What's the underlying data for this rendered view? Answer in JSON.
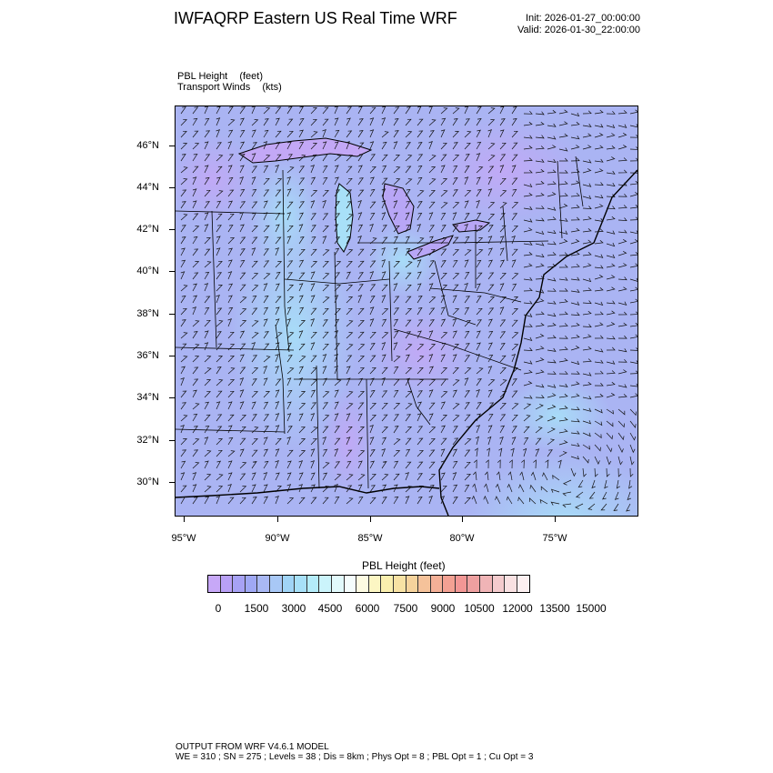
{
  "header": {
    "title": "IWFAQRP Eastern US Real Time WRF",
    "init": "Init: 2026-01-27_00:00:00",
    "valid": "Valid: 2026-01-30_22:00:00"
  },
  "fields": [
    {
      "name": "PBL Height",
      "unit": "(feet)"
    },
    {
      "name": "Transport Winds",
      "unit": "(kts)"
    }
  ],
  "map": {
    "lat_labels": [
      "46°N",
      "44°N",
      "42°N",
      "40°N",
      "38°N",
      "36°N",
      "34°N",
      "32°N",
      "30°N"
    ],
    "lon_labels": [
      "95°W",
      "90°W",
      "85°W",
      "80°W",
      "75°W"
    ]
  },
  "colorbar": {
    "title": "PBL Height  (feet)",
    "labels": [
      "0",
      "1500",
      "3000",
      "4500",
      "6000",
      "7500",
      "9000",
      "10500",
      "12000",
      "13500",
      "15000"
    ],
    "colors": [
      "#c7a8f7",
      "#b8a0f5",
      "#a7a2f4",
      "#9fa8f4",
      "#a9b8f4",
      "#a8c8f6",
      "#a0d4f6",
      "#a7e0f8",
      "#b4ecfa",
      "#cbf4fb",
      "#e2fafc",
      "#f5fdfd",
      "#fdfbe2",
      "#fcf6c3",
      "#faefae",
      "#f8e2a4",
      "#f6d39c",
      "#f5c29a",
      "#f4b097",
      "#f3a193",
      "#f29795",
      "#eea0a0",
      "#f0b4b6",
      "#f4cbcd",
      "#f9e1e2",
      "#fdf0f1"
    ]
  },
  "footer": {
    "line1": "OUTPUT FROM WRF V4.6.1 MODEL",
    "line2": "WE = 310 ; SN = 275 ; Levels = 38 ; Dis = 8km ; Phys Opt = 8 ; PBL Opt = 1 ; Cu Opt = 3"
  }
}
